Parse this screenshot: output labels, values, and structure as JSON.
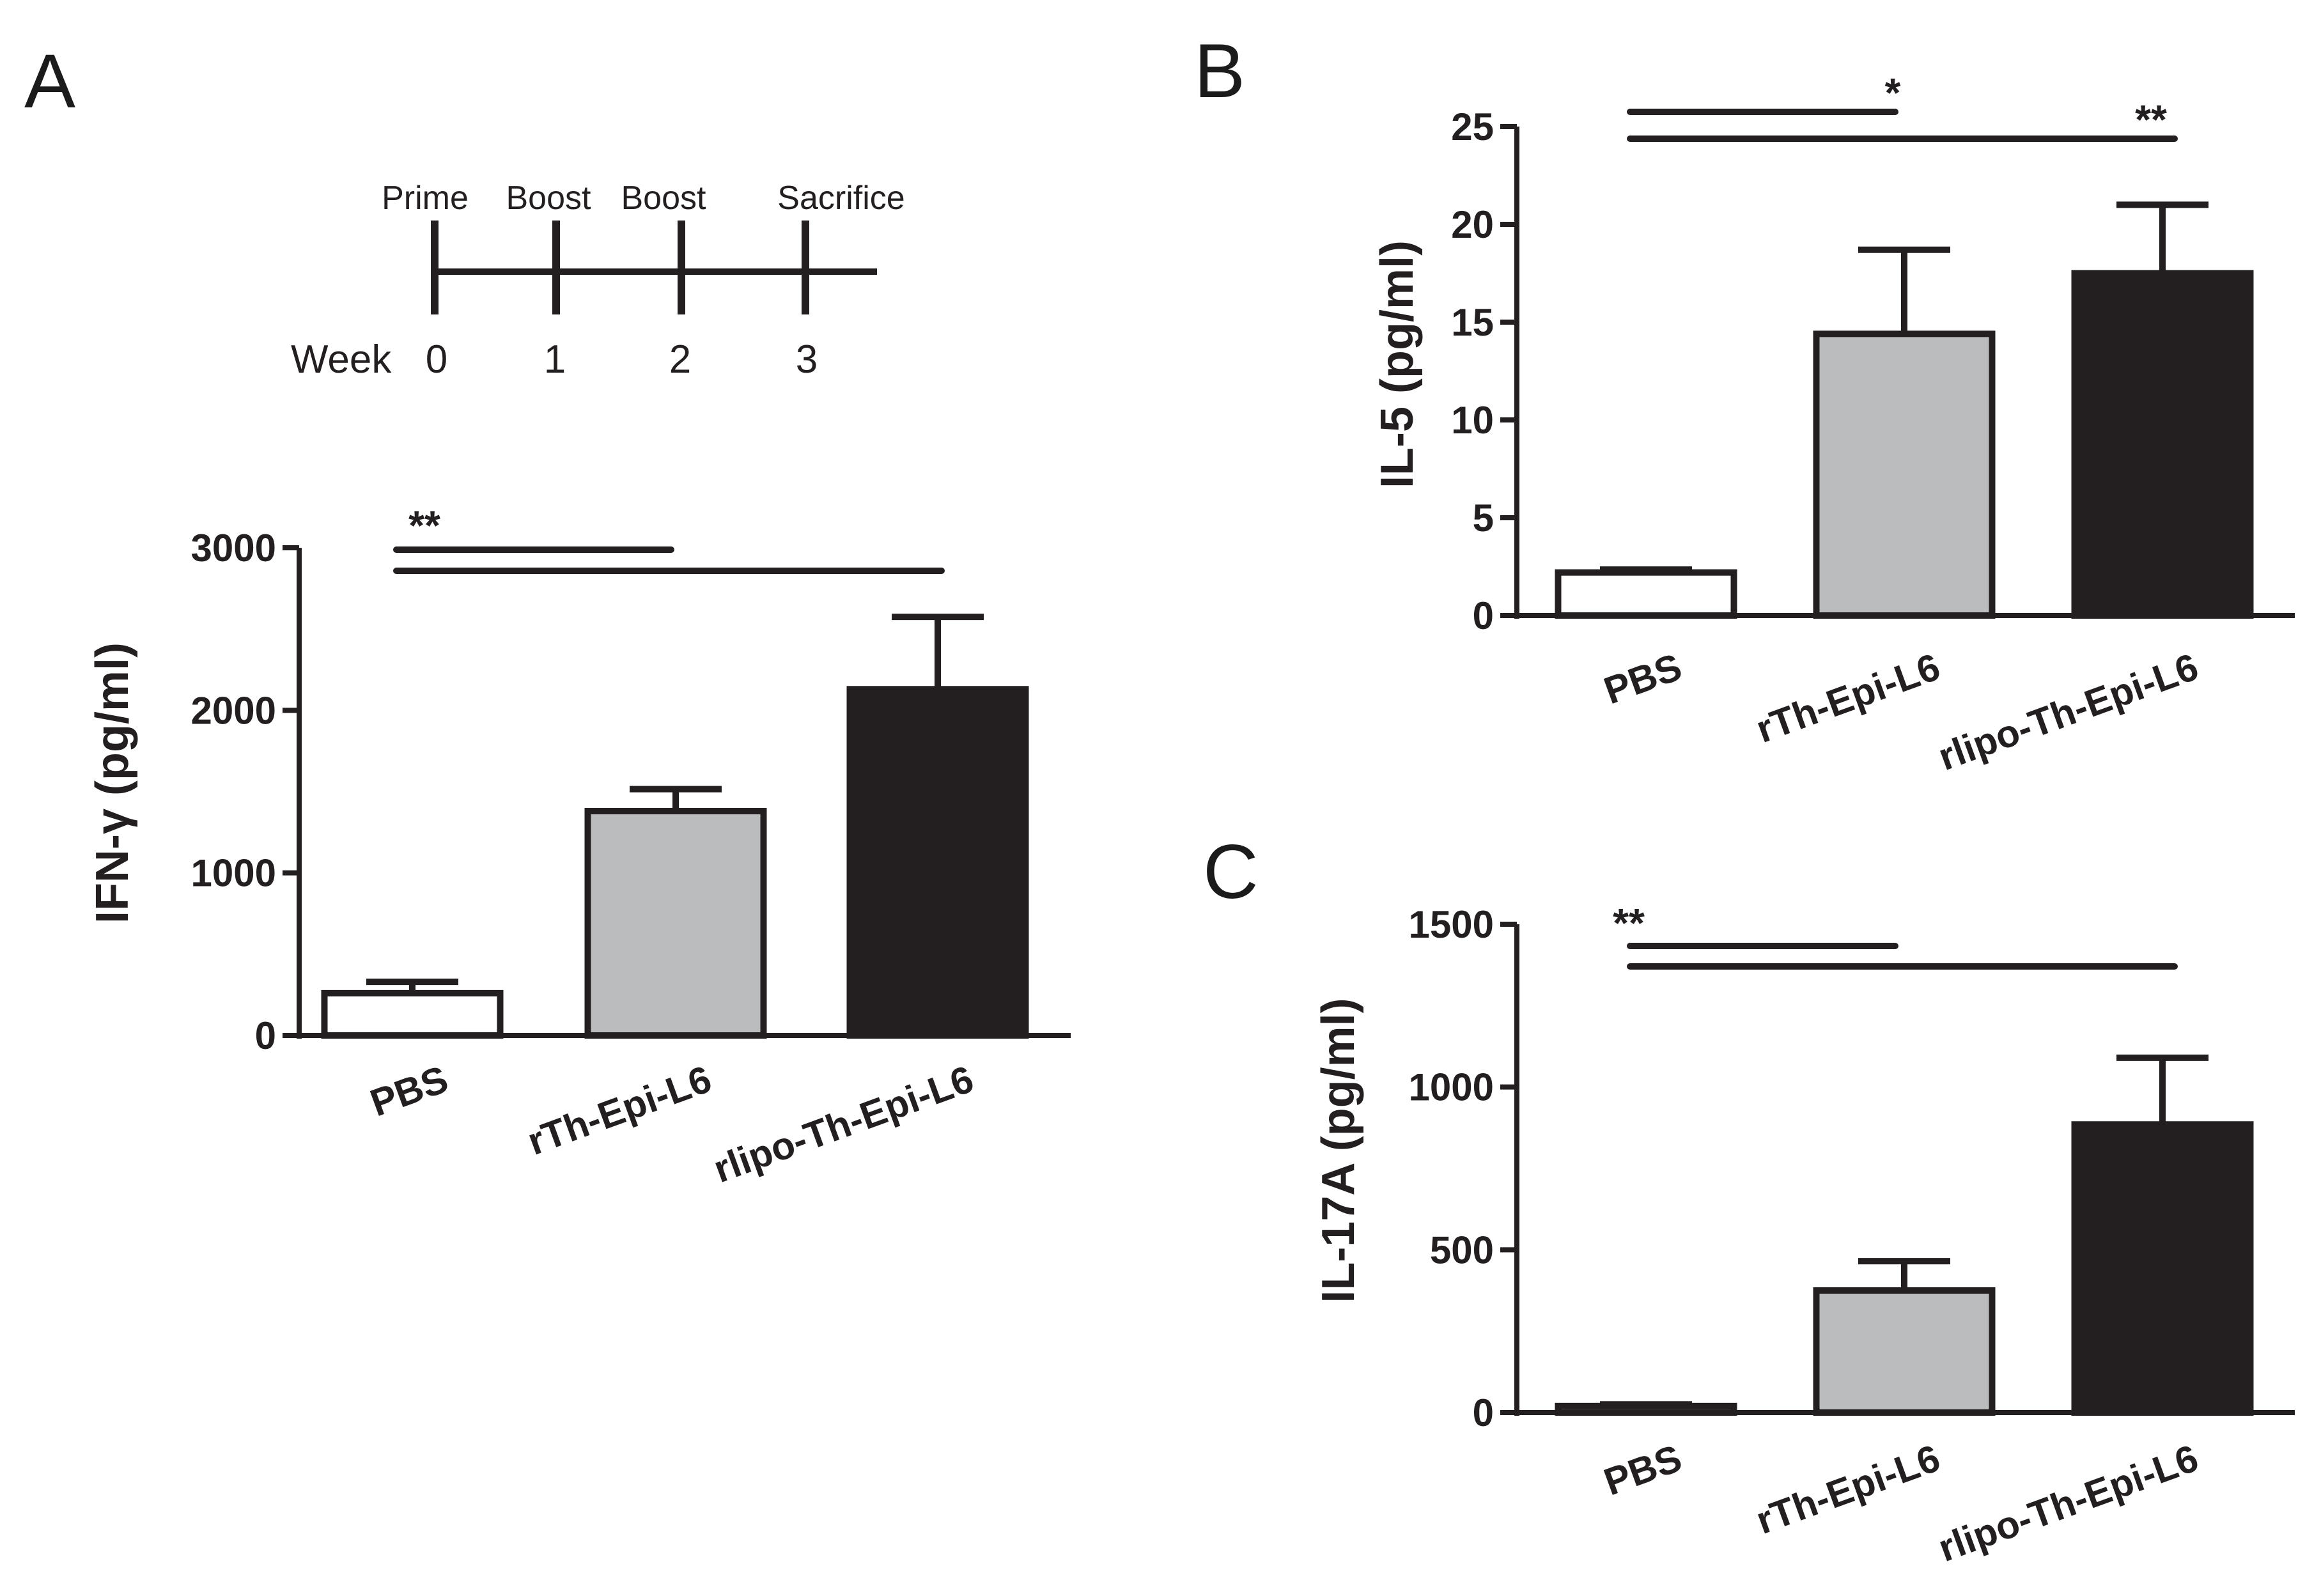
{
  "colors": {
    "ink": "#231f20",
    "pbs_fill": "#ffffff",
    "rth_fill": "#bbbcbe",
    "rlipo_fill": "#231f20"
  },
  "timeline": {
    "week_label": "Week",
    "events": [
      {
        "label": "Prime",
        "week": "0"
      },
      {
        "label": "Boost",
        "week": "1"
      },
      {
        "label": "Boost",
        "week": "2"
      },
      {
        "label": "Sacrifice",
        "week": "3"
      }
    ]
  },
  "chart_data": [
    {
      "panel": "A",
      "type": "bar",
      "ylabel": "IFN-γ (pg/ml)",
      "categories": [
        "PBS",
        "rTh-Epi-L6",
        "rlipo-Th-Epi-L6"
      ],
      "values": [
        260,
        1380,
        2130
      ],
      "errors": [
        70,
        135,
        445
      ],
      "ylim": [
        0,
        3000
      ],
      "yticks": [
        0,
        1000,
        2000,
        3000
      ],
      "significance": [
        {
          "from": "PBS",
          "to": "rTh-Epi-L6",
          "label": "**"
        },
        {
          "from": "PBS",
          "to": "rlipo-Th-Epi-L6",
          "label": ""
        }
      ]
    },
    {
      "panel": "B",
      "type": "bar",
      "ylabel": "IL-5 (pg/ml)",
      "categories": [
        "PBS",
        "rTh-Epi-L6",
        "rlipo-Th-Epi-L6"
      ],
      "values": [
        2.2,
        14.4,
        17.5
      ],
      "errors": [
        0.15,
        4.3,
        3.5
      ],
      "ylim": [
        0,
        25
      ],
      "yticks": [
        0,
        5,
        10,
        15,
        20,
        25
      ],
      "significance": [
        {
          "from": "PBS",
          "to": "rTh-Epi-L6",
          "label": "*"
        },
        {
          "from": "PBS",
          "to": "rlipo-Th-Epi-L6",
          "label": "**"
        }
      ]
    },
    {
      "panel": "C",
      "type": "bar",
      "ylabel": "IL-17A (pg/ml)",
      "categories": [
        "PBS",
        "rTh-Epi-L6",
        "rlipo-Th-Epi-L6"
      ],
      "values": [
        20,
        375,
        885
      ],
      "errors": [
        5,
        90,
        205
      ],
      "ylim": [
        0,
        1500
      ],
      "yticks": [
        0,
        500,
        1000,
        1500
      ],
      "significance": [
        {
          "from": "PBS",
          "to": "rTh-Epi-L6",
          "label": "**"
        },
        {
          "from": "PBS",
          "to": "rlipo-Th-Epi-L6",
          "label": ""
        }
      ]
    }
  ]
}
